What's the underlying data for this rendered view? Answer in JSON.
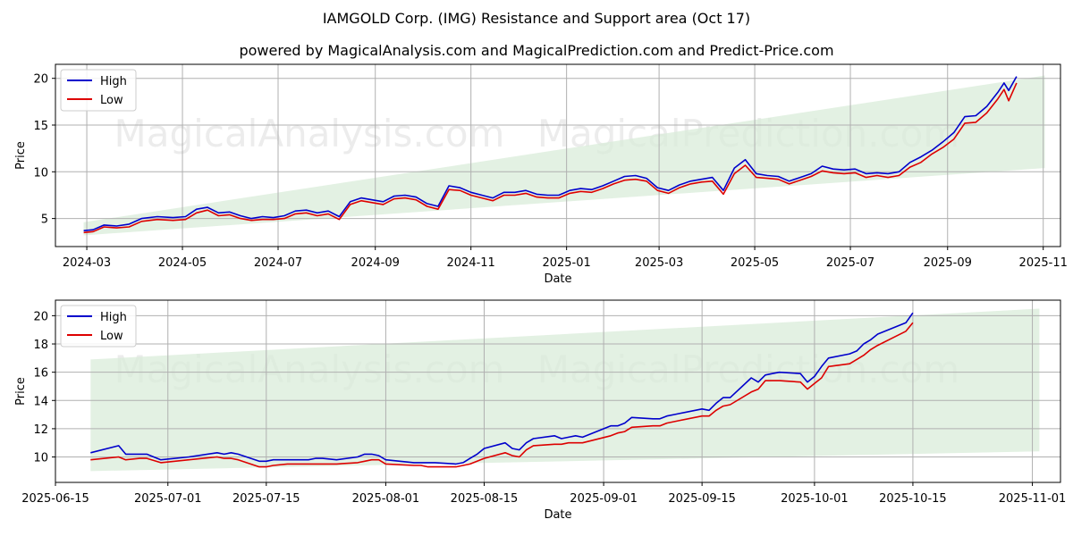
{
  "title": "IAMGOLD Corp. (IMG) Resistance and Support area (Oct 17)",
  "subtitle": "powered by MagicalAnalysis.com and MagicalPrediction.com and Predict-Price.com",
  "watermark_left": "MagicalAnalysis.com",
  "watermark_right": "MagicalPrediction.com",
  "colors": {
    "high": "#0000cc",
    "low": "#dd0000",
    "band": "#d9ecd9"
  },
  "chart_data": [
    {
      "type": "line",
      "xlabel": "Date",
      "ylabel": "Price",
      "xlim": [
        "2024-02-10",
        "2025-11-12"
      ],
      "ylim": [
        2,
        21.5
      ],
      "x_ticks": [
        "2024-03",
        "2024-05",
        "2024-07",
        "2024-09",
        "2024-11",
        "2025-01",
        "2025-03",
        "2025-05",
        "2025-07",
        "2025-09",
        "2025-11"
      ],
      "x_tick_dates": [
        "2024-03-01",
        "2024-05-01",
        "2024-07-01",
        "2024-09-01",
        "2024-11-01",
        "2025-01-01",
        "2025-03-01",
        "2025-05-01",
        "2025-07-01",
        "2025-09-01",
        "2025-11-01"
      ],
      "y_ticks": [
        5,
        10,
        15,
        20
      ],
      "grid": true,
      "legend": "top-left",
      "band": {
        "x": [
          "2024-02-28",
          "2025-11-02"
        ],
        "upper": [
          4.6,
          20.3
        ],
        "lower": [
          3.2,
          10.4
        ]
      },
      "series": [
        {
          "name": "High",
          "x": [
            "2024-02-28",
            "2024-03-05",
            "2024-03-12",
            "2024-03-20",
            "2024-03-28",
            "2024-04-05",
            "2024-04-15",
            "2024-04-25",
            "2024-05-03",
            "2024-05-10",
            "2024-05-17",
            "2024-05-24",
            "2024-05-31",
            "2024-06-07",
            "2024-06-14",
            "2024-06-21",
            "2024-06-28",
            "2024-07-05",
            "2024-07-12",
            "2024-07-19",
            "2024-07-26",
            "2024-08-02",
            "2024-08-09",
            "2024-08-16",
            "2024-08-23",
            "2024-08-30",
            "2024-09-06",
            "2024-09-13",
            "2024-09-20",
            "2024-09-27",
            "2024-10-04",
            "2024-10-11",
            "2024-10-18",
            "2024-10-25",
            "2024-11-01",
            "2024-11-08",
            "2024-11-15",
            "2024-11-22",
            "2024-11-29",
            "2024-12-06",
            "2024-12-13",
            "2024-12-20",
            "2024-12-27",
            "2025-01-03",
            "2025-01-10",
            "2025-01-17",
            "2025-01-24",
            "2025-01-31",
            "2025-02-07",
            "2025-02-14",
            "2025-02-21",
            "2025-02-28",
            "2025-03-07",
            "2025-03-14",
            "2025-03-21",
            "2025-03-28",
            "2025-04-04",
            "2025-04-11",
            "2025-04-18",
            "2025-04-25",
            "2025-05-02",
            "2025-05-09",
            "2025-05-16",
            "2025-05-23",
            "2025-05-30",
            "2025-06-06",
            "2025-06-13",
            "2025-06-20",
            "2025-06-27",
            "2025-07-04",
            "2025-07-11",
            "2025-07-18",
            "2025-07-25",
            "2025-08-01",
            "2025-08-08",
            "2025-08-15",
            "2025-08-22",
            "2025-08-29",
            "2025-09-05",
            "2025-09-12",
            "2025-09-19",
            "2025-09-26",
            "2025-10-03",
            "2025-10-07",
            "2025-10-10",
            "2025-10-15"
          ],
          "values": [
            3.7,
            3.8,
            4.3,
            4.2,
            4.4,
            5.0,
            5.2,
            5.1,
            5.2,
            6.0,
            6.2,
            5.6,
            5.7,
            5.3,
            5.0,
            5.2,
            5.1,
            5.3,
            5.8,
            5.9,
            5.6,
            5.8,
            5.2,
            6.8,
            7.2,
            7.0,
            6.8,
            7.4,
            7.5,
            7.3,
            6.6,
            6.3,
            8.5,
            8.3,
            7.8,
            7.5,
            7.2,
            7.8,
            7.8,
            8.0,
            7.6,
            7.5,
            7.5,
            8.0,
            8.2,
            8.1,
            8.5,
            9.0,
            9.5,
            9.6,
            9.3,
            8.3,
            8.0,
            8.6,
            9.0,
            9.2,
            9.4,
            8.0,
            10.4,
            11.3,
            9.8,
            9.6,
            9.5,
            9.0,
            9.4,
            9.8,
            10.6,
            10.3,
            10.2,
            10.3,
            9.8,
            9.9,
            9.8,
            10.0,
            11.0,
            11.6,
            12.3,
            13.2,
            14.2,
            15.9,
            16.0,
            17.0,
            18.5,
            19.5,
            18.7,
            20.2
          ]
        },
        {
          "name": "Low",
          "x": [
            "2024-02-28",
            "2024-03-05",
            "2024-03-12",
            "2024-03-20",
            "2024-03-28",
            "2024-04-05",
            "2024-04-15",
            "2024-04-25",
            "2024-05-03",
            "2024-05-10",
            "2024-05-17",
            "2024-05-24",
            "2024-05-31",
            "2024-06-07",
            "2024-06-14",
            "2024-06-21",
            "2024-06-28",
            "2024-07-05",
            "2024-07-12",
            "2024-07-19",
            "2024-07-26",
            "2024-08-02",
            "2024-08-09",
            "2024-08-16",
            "2024-08-23",
            "2024-08-30",
            "2024-09-06",
            "2024-09-13",
            "2024-09-20",
            "2024-09-27",
            "2024-10-04",
            "2024-10-11",
            "2024-10-18",
            "2024-10-25",
            "2024-11-01",
            "2024-11-08",
            "2024-11-15",
            "2024-11-22",
            "2024-11-29",
            "2024-12-06",
            "2024-12-13",
            "2024-12-20",
            "2024-12-27",
            "2025-01-03",
            "2025-01-10",
            "2025-01-17",
            "2025-01-24",
            "2025-01-31",
            "2025-02-07",
            "2025-02-14",
            "2025-02-21",
            "2025-02-28",
            "2025-03-07",
            "2025-03-14",
            "2025-03-21",
            "2025-03-28",
            "2025-04-04",
            "2025-04-11",
            "2025-04-18",
            "2025-04-25",
            "2025-05-02",
            "2025-05-09",
            "2025-05-16",
            "2025-05-23",
            "2025-05-30",
            "2025-06-06",
            "2025-06-13",
            "2025-06-20",
            "2025-06-27",
            "2025-07-04",
            "2025-07-11",
            "2025-07-18",
            "2025-07-25",
            "2025-08-01",
            "2025-08-08",
            "2025-08-15",
            "2025-08-22",
            "2025-08-29",
            "2025-09-05",
            "2025-09-12",
            "2025-09-19",
            "2025-09-26",
            "2025-10-03",
            "2025-10-07",
            "2025-10-10",
            "2025-10-15"
          ],
          "values": [
            3.5,
            3.6,
            4.1,
            4.0,
            4.1,
            4.7,
            4.9,
            4.8,
            4.9,
            5.6,
            5.9,
            5.3,
            5.4,
            5.0,
            4.8,
            4.9,
            4.9,
            5.0,
            5.5,
            5.6,
            5.3,
            5.5,
            4.9,
            6.5,
            6.9,
            6.7,
            6.5,
            7.1,
            7.2,
            7.0,
            6.3,
            6.0,
            8.1,
            8.0,
            7.5,
            7.2,
            6.9,
            7.5,
            7.5,
            7.7,
            7.3,
            7.2,
            7.2,
            7.7,
            7.9,
            7.8,
            8.2,
            8.7,
            9.1,
            9.2,
            9.0,
            8.0,
            7.7,
            8.3,
            8.7,
            8.9,
            9.0,
            7.6,
            9.8,
            10.7,
            9.4,
            9.3,
            9.2,
            8.7,
            9.1,
            9.5,
            10.1,
            9.9,
            9.8,
            9.9,
            9.4,
            9.6,
            9.4,
            9.6,
            10.5,
            11.0,
            11.9,
            12.6,
            13.5,
            15.2,
            15.3,
            16.3,
            17.8,
            18.8,
            17.6,
            19.5
          ]
        }
      ]
    },
    {
      "type": "line",
      "xlabel": "Date",
      "ylabel": "Price",
      "xlim": [
        "2025-06-15",
        "2025-11-05"
      ],
      "ylim": [
        8.2,
        21.1
      ],
      "x_ticks": [
        "2025-06-15",
        "2025-07-01",
        "2025-07-15",
        "2025-08-01",
        "2025-08-15",
        "2025-09-01",
        "2025-09-15",
        "2025-10-01",
        "2025-10-15",
        "2025-11-01"
      ],
      "y_ticks": [
        10,
        12,
        14,
        16,
        18,
        20
      ],
      "grid": true,
      "legend": "top-left",
      "band": {
        "x": [
          "2025-06-20",
          "2025-11-02"
        ],
        "upper": [
          16.9,
          20.5
        ],
        "lower": [
          9.0,
          10.4
        ]
      },
      "series": [
        {
          "name": "High",
          "x": [
            "2025-06-20",
            "2025-06-24",
            "2025-06-25",
            "2025-06-27",
            "2025-06-28",
            "2025-06-30",
            "2025-07-04",
            "2025-07-08",
            "2025-07-09",
            "2025-07-10",
            "2025-07-11",
            "2025-07-14",
            "2025-07-15",
            "2025-07-16",
            "2025-07-18",
            "2025-07-21",
            "2025-07-22",
            "2025-07-23",
            "2025-07-25",
            "2025-07-28",
            "2025-07-29",
            "2025-07-30",
            "2025-07-31",
            "2025-08-01",
            "2025-08-05",
            "2025-08-06",
            "2025-08-07",
            "2025-08-08",
            "2025-08-11",
            "2025-08-12",
            "2025-08-13",
            "2025-08-14",
            "2025-08-15",
            "2025-08-18",
            "2025-08-19",
            "2025-08-20",
            "2025-08-21",
            "2025-08-22",
            "2025-08-25",
            "2025-08-26",
            "2025-08-27",
            "2025-08-28",
            "2025-08-29",
            "2025-09-02",
            "2025-09-03",
            "2025-09-04",
            "2025-09-05",
            "2025-09-08",
            "2025-09-09",
            "2025-09-10",
            "2025-09-11",
            "2025-09-12",
            "2025-09-15",
            "2025-09-16",
            "2025-09-17",
            "2025-09-18",
            "2025-09-19",
            "2025-09-22",
            "2025-09-23",
            "2025-09-24",
            "2025-09-25",
            "2025-09-26",
            "2025-09-29",
            "2025-09-30",
            "2025-10-01",
            "2025-10-02",
            "2025-10-03",
            "2025-10-06",
            "2025-10-07",
            "2025-10-08",
            "2025-10-09",
            "2025-10-10",
            "2025-10-14",
            "2025-10-15"
          ],
          "values": [
            10.3,
            10.8,
            10.2,
            10.2,
            10.2,
            9.8,
            10.0,
            10.3,
            10.2,
            10.3,
            10.2,
            9.7,
            9.7,
            9.8,
            9.8,
            9.8,
            9.9,
            9.9,
            9.8,
            10.0,
            10.2,
            10.2,
            10.1,
            9.8,
            9.6,
            9.6,
            9.6,
            9.6,
            9.5,
            9.6,
            9.9,
            10.2,
            10.6,
            11.0,
            10.6,
            10.5,
            11.0,
            11.3,
            11.5,
            11.3,
            11.4,
            11.5,
            11.4,
            12.2,
            12.2,
            12.4,
            12.8,
            12.7,
            12.7,
            12.9,
            13.0,
            13.1,
            13.4,
            13.3,
            13.8,
            14.2,
            14.2,
            15.6,
            15.3,
            15.8,
            15.9,
            16.0,
            15.9,
            15.3,
            15.7,
            16.4,
            17.0,
            17.3,
            17.5,
            18.0,
            18.3,
            18.7,
            19.5,
            20.2
          ]
        },
        {
          "name": "Low",
          "x": [
            "2025-06-20",
            "2025-06-24",
            "2025-06-25",
            "2025-06-27",
            "2025-06-28",
            "2025-06-30",
            "2025-07-04",
            "2025-07-08",
            "2025-07-09",
            "2025-07-10",
            "2025-07-11",
            "2025-07-14",
            "2025-07-15",
            "2025-07-16",
            "2025-07-18",
            "2025-07-21",
            "2025-07-22",
            "2025-07-23",
            "2025-07-25",
            "2025-07-28",
            "2025-07-29",
            "2025-07-30",
            "2025-07-31",
            "2025-08-01",
            "2025-08-05",
            "2025-08-06",
            "2025-08-07",
            "2025-08-08",
            "2025-08-11",
            "2025-08-12",
            "2025-08-13",
            "2025-08-14",
            "2025-08-15",
            "2025-08-18",
            "2025-08-19",
            "2025-08-20",
            "2025-08-21",
            "2025-08-22",
            "2025-08-25",
            "2025-08-26",
            "2025-08-27",
            "2025-08-28",
            "2025-08-29",
            "2025-09-02",
            "2025-09-03",
            "2025-09-04",
            "2025-09-05",
            "2025-09-08",
            "2025-09-09",
            "2025-09-10",
            "2025-09-11",
            "2025-09-12",
            "2025-09-15",
            "2025-09-16",
            "2025-09-17",
            "2025-09-18",
            "2025-09-19",
            "2025-09-22",
            "2025-09-23",
            "2025-09-24",
            "2025-09-25",
            "2025-09-26",
            "2025-09-29",
            "2025-09-30",
            "2025-10-01",
            "2025-10-02",
            "2025-10-03",
            "2025-10-06",
            "2025-10-07",
            "2025-10-08",
            "2025-10-09",
            "2025-10-10",
            "2025-10-14",
            "2025-10-15"
          ],
          "values": [
            9.8,
            10.0,
            9.8,
            9.9,
            9.9,
            9.6,
            9.8,
            10.0,
            9.9,
            9.9,
            9.8,
            9.3,
            9.3,
            9.4,
            9.5,
            9.5,
            9.5,
            9.5,
            9.5,
            9.6,
            9.7,
            9.8,
            9.8,
            9.5,
            9.4,
            9.4,
            9.3,
            9.3,
            9.3,
            9.4,
            9.5,
            9.7,
            9.9,
            10.3,
            10.1,
            10.0,
            10.5,
            10.8,
            10.9,
            10.9,
            11.0,
            11.0,
            11.0,
            11.5,
            11.7,
            11.8,
            12.1,
            12.2,
            12.2,
            12.4,
            12.5,
            12.6,
            12.9,
            12.9,
            13.3,
            13.6,
            13.7,
            14.6,
            14.8,
            15.4,
            15.4,
            15.4,
            15.3,
            14.8,
            15.2,
            15.6,
            16.4,
            16.6,
            16.9,
            17.2,
            17.6,
            17.9,
            18.9,
            19.5
          ]
        }
      ]
    }
  ]
}
